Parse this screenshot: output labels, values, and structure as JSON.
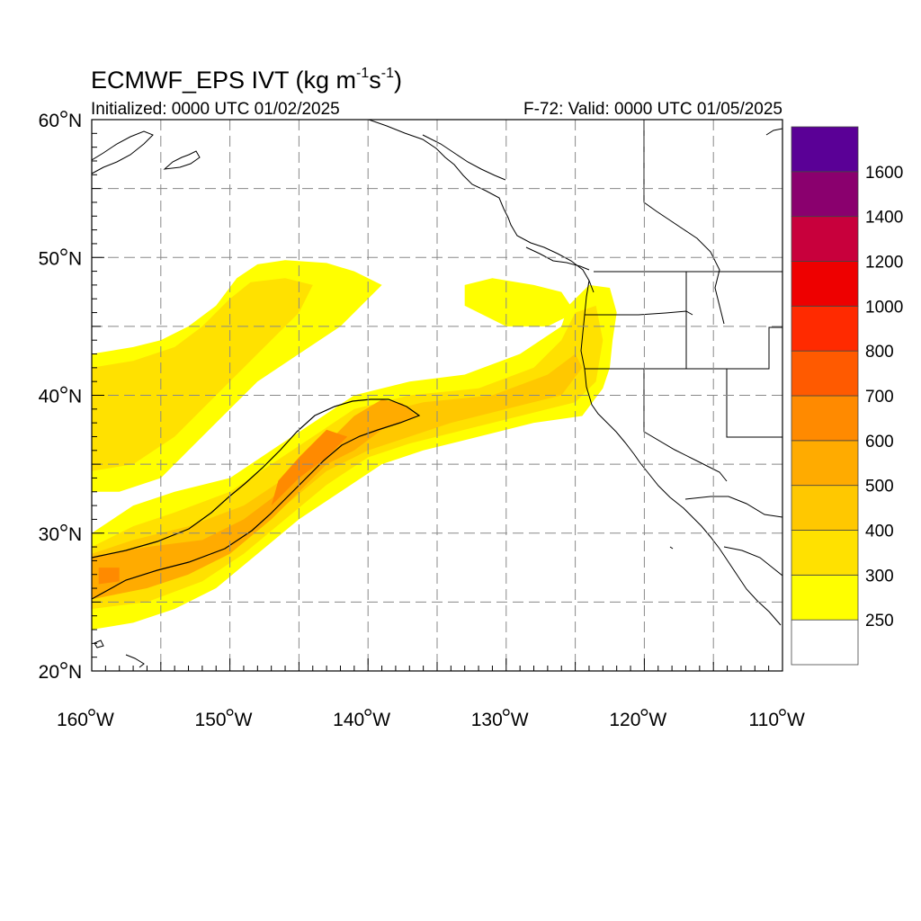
{
  "title": {
    "main": "ECMWF_EPS IVT (kg m",
    "sup1": "-1",
    "mid": "s",
    "sup2": "-1",
    "end": ")"
  },
  "subtitle_left": "Initialized: 0000 UTC 01/02/2025",
  "subtitle_right": "F-72: Valid: 0000 UTC 01/05/2025",
  "map": {
    "lon_range": [
      -160,
      -110
    ],
    "lat_range": [
      20,
      60
    ],
    "lat_ticks": [
      {
        "value": 60,
        "label": "60",
        "hemi": "N"
      },
      {
        "value": 50,
        "label": "50",
        "hemi": "N"
      },
      {
        "value": 40,
        "label": "40",
        "hemi": "N"
      },
      {
        "value": 30,
        "label": "30",
        "hemi": "N"
      },
      {
        "value": 20,
        "label": "20",
        "hemi": "N"
      }
    ],
    "lon_ticks": [
      {
        "value": -160,
        "label": "160",
        "hemi": "W"
      },
      {
        "value": -150,
        "label": "150",
        "hemi": "W"
      },
      {
        "value": -140,
        "label": "140",
        "hemi": "W"
      },
      {
        "value": -130,
        "label": "130",
        "hemi": "W"
      },
      {
        "value": -120,
        "label": "120",
        "hemi": "W"
      },
      {
        "value": -110,
        "label": "110",
        "hemi": "W"
      }
    ],
    "grid_dashed_every_deg": 5
  },
  "colorbar": {
    "levels": [
      {
        "label": "",
        "color": "#ffffff"
      },
      {
        "label": "250",
        "color": "#ffff00"
      },
      {
        "label": "300",
        "color": "#ffe100"
      },
      {
        "label": "400",
        "color": "#ffc800"
      },
      {
        "label": "500",
        "color": "#ffab00"
      },
      {
        "label": "600",
        "color": "#ff8a00"
      },
      {
        "label": "700",
        "color": "#ff5a00"
      },
      {
        "label": "800",
        "color": "#ff2a00"
      },
      {
        "label": "1000",
        "color": "#ee0000"
      },
      {
        "label": "1200",
        "color": "#c8003c"
      },
      {
        "label": "1400",
        "color": "#8a006e"
      },
      {
        "label": "1600",
        "color": "#5a0096"
      }
    ]
  },
  "ivt_field": {
    "units": "kg m-1 s-1",
    "regions": [
      {
        "level": 250,
        "color": "#ffff00",
        "polygon": [
          [
            -160,
            43
          ],
          [
            -157,
            43.5
          ],
          [
            -155,
            44
          ],
          [
            -153,
            45
          ],
          [
            -151,
            46.5
          ],
          [
            -149.5,
            48.5
          ],
          [
            -148,
            49.5
          ],
          [
            -146,
            49.8
          ],
          [
            -143,
            49.6
          ],
          [
            -141,
            49
          ],
          [
            -139,
            48
          ],
          [
            -140,
            47
          ],
          [
            -142,
            45
          ],
          [
            -145,
            43
          ],
          [
            -148,
            41
          ],
          [
            -151,
            38
          ],
          [
            -153,
            36
          ],
          [
            -155,
            34
          ],
          [
            -158,
            33
          ],
          [
            -160,
            33
          ]
        ]
      },
      {
        "level": 250,
        "color": "#ffff00",
        "polygon": [
          [
            -160,
            30
          ],
          [
            -157,
            32
          ],
          [
            -154,
            33
          ],
          [
            -150,
            34
          ],
          [
            -147,
            36
          ],
          [
            -144,
            38
          ],
          [
            -141,
            40
          ],
          [
            -137,
            41
          ],
          [
            -133,
            41.5
          ],
          [
            -129,
            43
          ],
          [
            -126,
            45
          ],
          [
            -125.5,
            46.5
          ],
          [
            -124,
            48
          ],
          [
            -122.5,
            47.8
          ],
          [
            -122,
            46
          ],
          [
            -122.3,
            44
          ],
          [
            -122.5,
            42
          ],
          [
            -123,
            40.5
          ],
          [
            -124.5,
            38.5
          ],
          [
            -128,
            38
          ],
          [
            -132,
            37
          ],
          [
            -136,
            36
          ],
          [
            -139,
            35
          ],
          [
            -142,
            33
          ],
          [
            -145,
            31
          ],
          [
            -148,
            28.5
          ],
          [
            -151,
            26
          ],
          [
            -154,
            24.5
          ],
          [
            -157,
            23.5
          ],
          [
            -160,
            23
          ]
        ]
      },
      {
        "level": 250,
        "color": "#ffff00",
        "polygon": [
          [
            -133,
            48
          ],
          [
            -131,
            48.5
          ],
          [
            -128,
            48
          ],
          [
            -126,
            47.5
          ],
          [
            -125,
            46
          ],
          [
            -127,
            45
          ],
          [
            -130,
            45
          ],
          [
            -133,
            46.5
          ]
        ]
      },
      {
        "level": 300,
        "color": "#ffe100",
        "polygon": [
          [
            -160,
            42
          ],
          [
            -157,
            42.5
          ],
          [
            -154,
            43.5
          ],
          [
            -152,
            45
          ],
          [
            -150,
            47
          ],
          [
            -148.5,
            48.2
          ],
          [
            -146,
            48.5
          ],
          [
            -144,
            48
          ],
          [
            -145,
            46
          ],
          [
            -148,
            43
          ],
          [
            -151,
            40
          ],
          [
            -154,
            37
          ],
          [
            -157,
            35
          ],
          [
            -160,
            34.5
          ]
        ]
      },
      {
        "level": 300,
        "color": "#ffe100",
        "polygon": [
          [
            -160,
            29
          ],
          [
            -157,
            30.5
          ],
          [
            -154,
            31.5
          ],
          [
            -150,
            33
          ],
          [
            -147,
            35
          ],
          [
            -144,
            37
          ],
          [
            -141,
            39
          ],
          [
            -137,
            40
          ],
          [
            -132,
            40.5
          ],
          [
            -128,
            42
          ],
          [
            -126,
            44
          ],
          [
            -125,
            46
          ],
          [
            -123.5,
            46.5
          ],
          [
            -123,
            44
          ],
          [
            -123.5,
            41
          ],
          [
            -125,
            39.5
          ],
          [
            -129,
            38.5
          ],
          [
            -133,
            37.5
          ],
          [
            -137,
            36.5
          ],
          [
            -140,
            35.5
          ],
          [
            -143,
            33.5
          ],
          [
            -146,
            31
          ],
          [
            -149,
            28.5
          ],
          [
            -152,
            26.5
          ],
          [
            -156,
            25
          ],
          [
            -160,
            24.5
          ]
        ]
      },
      {
        "level": 400,
        "color": "#ffc800",
        "polygon": [
          [
            -160,
            28.5
          ],
          [
            -157,
            29.5
          ],
          [
            -153,
            30.5
          ],
          [
            -149,
            32
          ],
          [
            -146,
            34
          ],
          [
            -143,
            36.5
          ],
          [
            -140,
            38.5
          ],
          [
            -136,
            39.5
          ],
          [
            -131,
            40
          ],
          [
            -127,
            41.5
          ],
          [
            -125,
            43
          ],
          [
            -124.5,
            42
          ],
          [
            -126,
            40
          ],
          [
            -130,
            39
          ],
          [
            -134,
            38
          ],
          [
            -137,
            37
          ],
          [
            -140,
            36
          ],
          [
            -143,
            34.5
          ],
          [
            -146,
            32
          ],
          [
            -149,
            29.5
          ],
          [
            -152,
            27.5
          ],
          [
            -156,
            26
          ],
          [
            -160,
            25.5
          ]
        ]
      },
      {
        "level": 500,
        "color": "#ffab00",
        "polygon": [
          [
            -160,
            28.3
          ],
          [
            -156,
            29
          ],
          [
            -152,
            29.5
          ],
          [
            -149,
            31
          ],
          [
            -147,
            32.5
          ],
          [
            -145,
            34.5
          ],
          [
            -143,
            36.5
          ],
          [
            -141,
            38.5
          ],
          [
            -139,
            39.7
          ],
          [
            -137.5,
            39.4
          ],
          [
            -136.5,
            38.5
          ],
          [
            -139,
            37.5
          ],
          [
            -141,
            36
          ],
          [
            -143,
            35
          ],
          [
            -145,
            33
          ],
          [
            -147,
            31
          ],
          [
            -150,
            28.5
          ],
          [
            -153,
            27
          ],
          [
            -156,
            26
          ],
          [
            -160,
            25.2
          ]
        ]
      },
      {
        "level": 600,
        "color": "#ff8a00",
        "polygon": [
          [
            -159.5,
            27.5
          ],
          [
            -158,
            27.5
          ],
          [
            -158,
            26.5
          ],
          [
            -159.5,
            26.3
          ]
        ]
      },
      {
        "level": 600,
        "color": "#ff8a00",
        "polygon": [
          [
            -147,
            32
          ],
          [
            -145,
            34
          ],
          [
            -143,
            35.5
          ],
          [
            -141.5,
            37
          ],
          [
            -143,
            37.5
          ],
          [
            -145,
            35.5
          ],
          [
            -146.5,
            33.8
          ]
        ]
      }
    ]
  }
}
